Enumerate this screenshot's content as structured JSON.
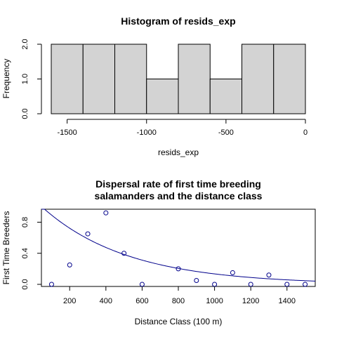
{
  "chart_data": [
    {
      "type": "bar",
      "title": "Histogram of resids_exp",
      "xlabel": "resids_exp",
      "ylabel": "Frequency",
      "bin_edges": [
        -1600,
        -1400,
        -1200,
        -1000,
        -800,
        -600,
        -400,
        -200,
        0
      ],
      "values": [
        2,
        2,
        2,
        1,
        2,
        1,
        2,
        2
      ],
      "xticks": [
        -1500,
        -1000,
        -500,
        0
      ],
      "xtick_labels": [
        "-1500",
        "-1000",
        "-500",
        "0"
      ],
      "yticks": [
        0,
        1,
        2
      ],
      "ytick_labels": [
        "0.0",
        "1.0",
        "2.0"
      ],
      "xlim": [
        -1600,
        0
      ],
      "ylim": [
        0,
        2
      ],
      "bar_color": "#d3d3d3",
      "grid": false
    },
    {
      "type": "scatter",
      "title_lines": [
        "Dispersal rate of first time breeding",
        "salamanders and the distance class"
      ],
      "xlabel": "Distance Class (100 m)",
      "ylabel": "First Time Breeders",
      "x": [
        100,
        200,
        300,
        400,
        500,
        600,
        800,
        900,
        1000,
        1100,
        1200,
        1300,
        1400,
        1500
      ],
      "y": [
        0.0,
        0.25,
        0.65,
        0.92,
        0.4,
        0.0,
        0.2,
        0.05,
        0.0,
        0.15,
        0.0,
        0.12,
        0.0,
        0.0
      ],
      "fit_curve": {
        "a": 1.1,
        "b": 0.0021
      },
      "xticks": [
        200,
        400,
        600,
        800,
        1000,
        1200,
        1400
      ],
      "xtick_labels": [
        "200",
        "400",
        "600",
        "800",
        "1000",
        "1200",
        "1400"
      ],
      "yticks": [
        0.0,
        0.4,
        0.8
      ],
      "ytick_labels": [
        "0.0",
        "0.4",
        "0.8"
      ],
      "xlim": [
        44,
        1556
      ],
      "ylim": [
        -0.027,
        0.967
      ],
      "point_color": "#00008b",
      "line_color": "#00008b",
      "grid": false
    }
  ]
}
